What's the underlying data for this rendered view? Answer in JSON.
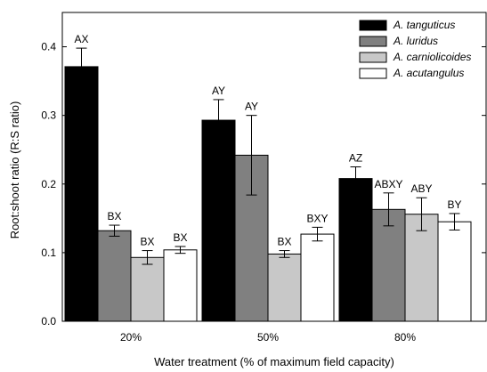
{
  "chart_data": {
    "type": "bar",
    "title": "",
    "xlabel": "Water treatment (% of maximum field capacity)",
    "ylabel": "Root:shoot ratio (R:S ratio)",
    "categories": [
      "20%",
      "50%",
      "80%"
    ],
    "ylim": [
      0,
      0.45
    ],
    "yticks": [
      0.0,
      0.1,
      0.2,
      0.3,
      0.4
    ],
    "ytick_labels": [
      "0.0",
      "0.1",
      "0.2",
      "0.3",
      "0.4"
    ],
    "grid": false,
    "legend_position": "top-right",
    "series": [
      {
        "name": "A. tanguticus",
        "color": "#000000",
        "values": [
          0.371,
          0.293,
          0.208
        ],
        "errors": [
          0.027,
          0.03,
          0.017
        ],
        "labels": [
          "AX",
          "AY",
          "AZ"
        ]
      },
      {
        "name": "A. luridus",
        "color": "#808080",
        "values": [
          0.132,
          0.242,
          0.163
        ],
        "errors": [
          0.008,
          0.058,
          0.024
        ],
        "labels": [
          "BX",
          "AY",
          "ABXY"
        ]
      },
      {
        "name": "A. carniolicoides",
        "color": "#c8c8c8",
        "values": [
          0.093,
          0.098,
          0.156
        ],
        "errors": [
          0.01,
          0.005,
          0.024
        ],
        "labels": [
          "BX",
          "BX",
          "ABY"
        ]
      },
      {
        "name": "A. acutangulus",
        "color": "#ffffff",
        "values": [
          0.104,
          0.127,
          0.145
        ],
        "errors": [
          0.005,
          0.01,
          0.012
        ],
        "labels": [
          "BX",
          "BXY",
          "BY"
        ]
      }
    ]
  }
}
